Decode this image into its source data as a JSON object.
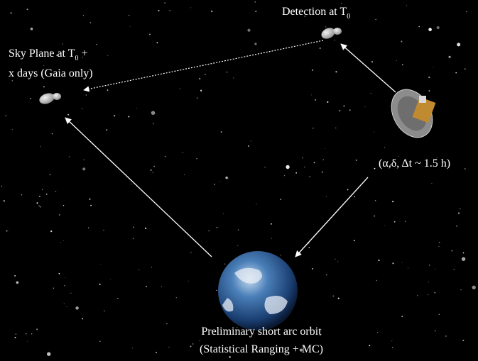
{
  "nodes": [
    {
      "label": "Detection at T",
      "subscript": "0"
    },
    {
      "label": "Sky Plane  at T",
      "subscript": "0",
      "suffix": " +",
      "line2": "x days (Gaia only)"
    },
    {
      "label": "(α,δ, Δt ~ 1.5 h)"
    },
    {
      "label": "Preliminary short arc orbit",
      "line2": "(Statistical Ranging + MC)"
    }
  ]
}
